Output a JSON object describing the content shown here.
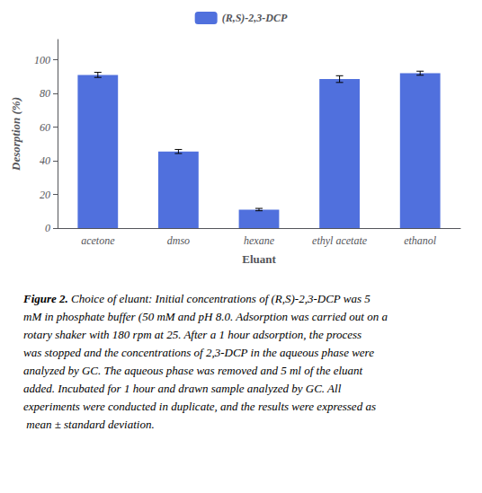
{
  "chart_data": {
    "type": "bar",
    "categories": [
      "acetone",
      "dmso",
      "hexane",
      "ethyl acetate",
      "ethanol"
    ],
    "values": [
      91.0,
      45.5,
      11.0,
      88.5,
      92.0
    ],
    "errors": [
      1.5,
      1.2,
      0.7,
      2.0,
      1.2
    ],
    "name": "(R,S)-2,3-DCP",
    "xlabel": "Eluant",
    "ylabel": "Desorption (%)",
    "ylim": [
      0,
      112
    ],
    "yticks": [
      0,
      20,
      40,
      60,
      80,
      100
    ],
    "grid": false,
    "legend": "top",
    "caption": {
      "bold": "Figure 2.",
      "text": "Choice of eluant: Initial concentrations of (R,S)-2,3-DCP was 5 mM in phosphate buffer (50 mM and pH 8.0. Adsorption was carried out on a rotary shaker with 180 rpm at 25. After a 1 hour adsorption, the process was stopped and the concentrations of 2,3-DCP in the aqueous phase were analyzed by GC. The aqueous phase was removed and 5 ml of the eluant added. Incubated for 1 hour and drawn sample analyzed by GC. All experiments were conducted in duplicate, and the results were expressed as mean ± standard deviation."
    }
  }
}
